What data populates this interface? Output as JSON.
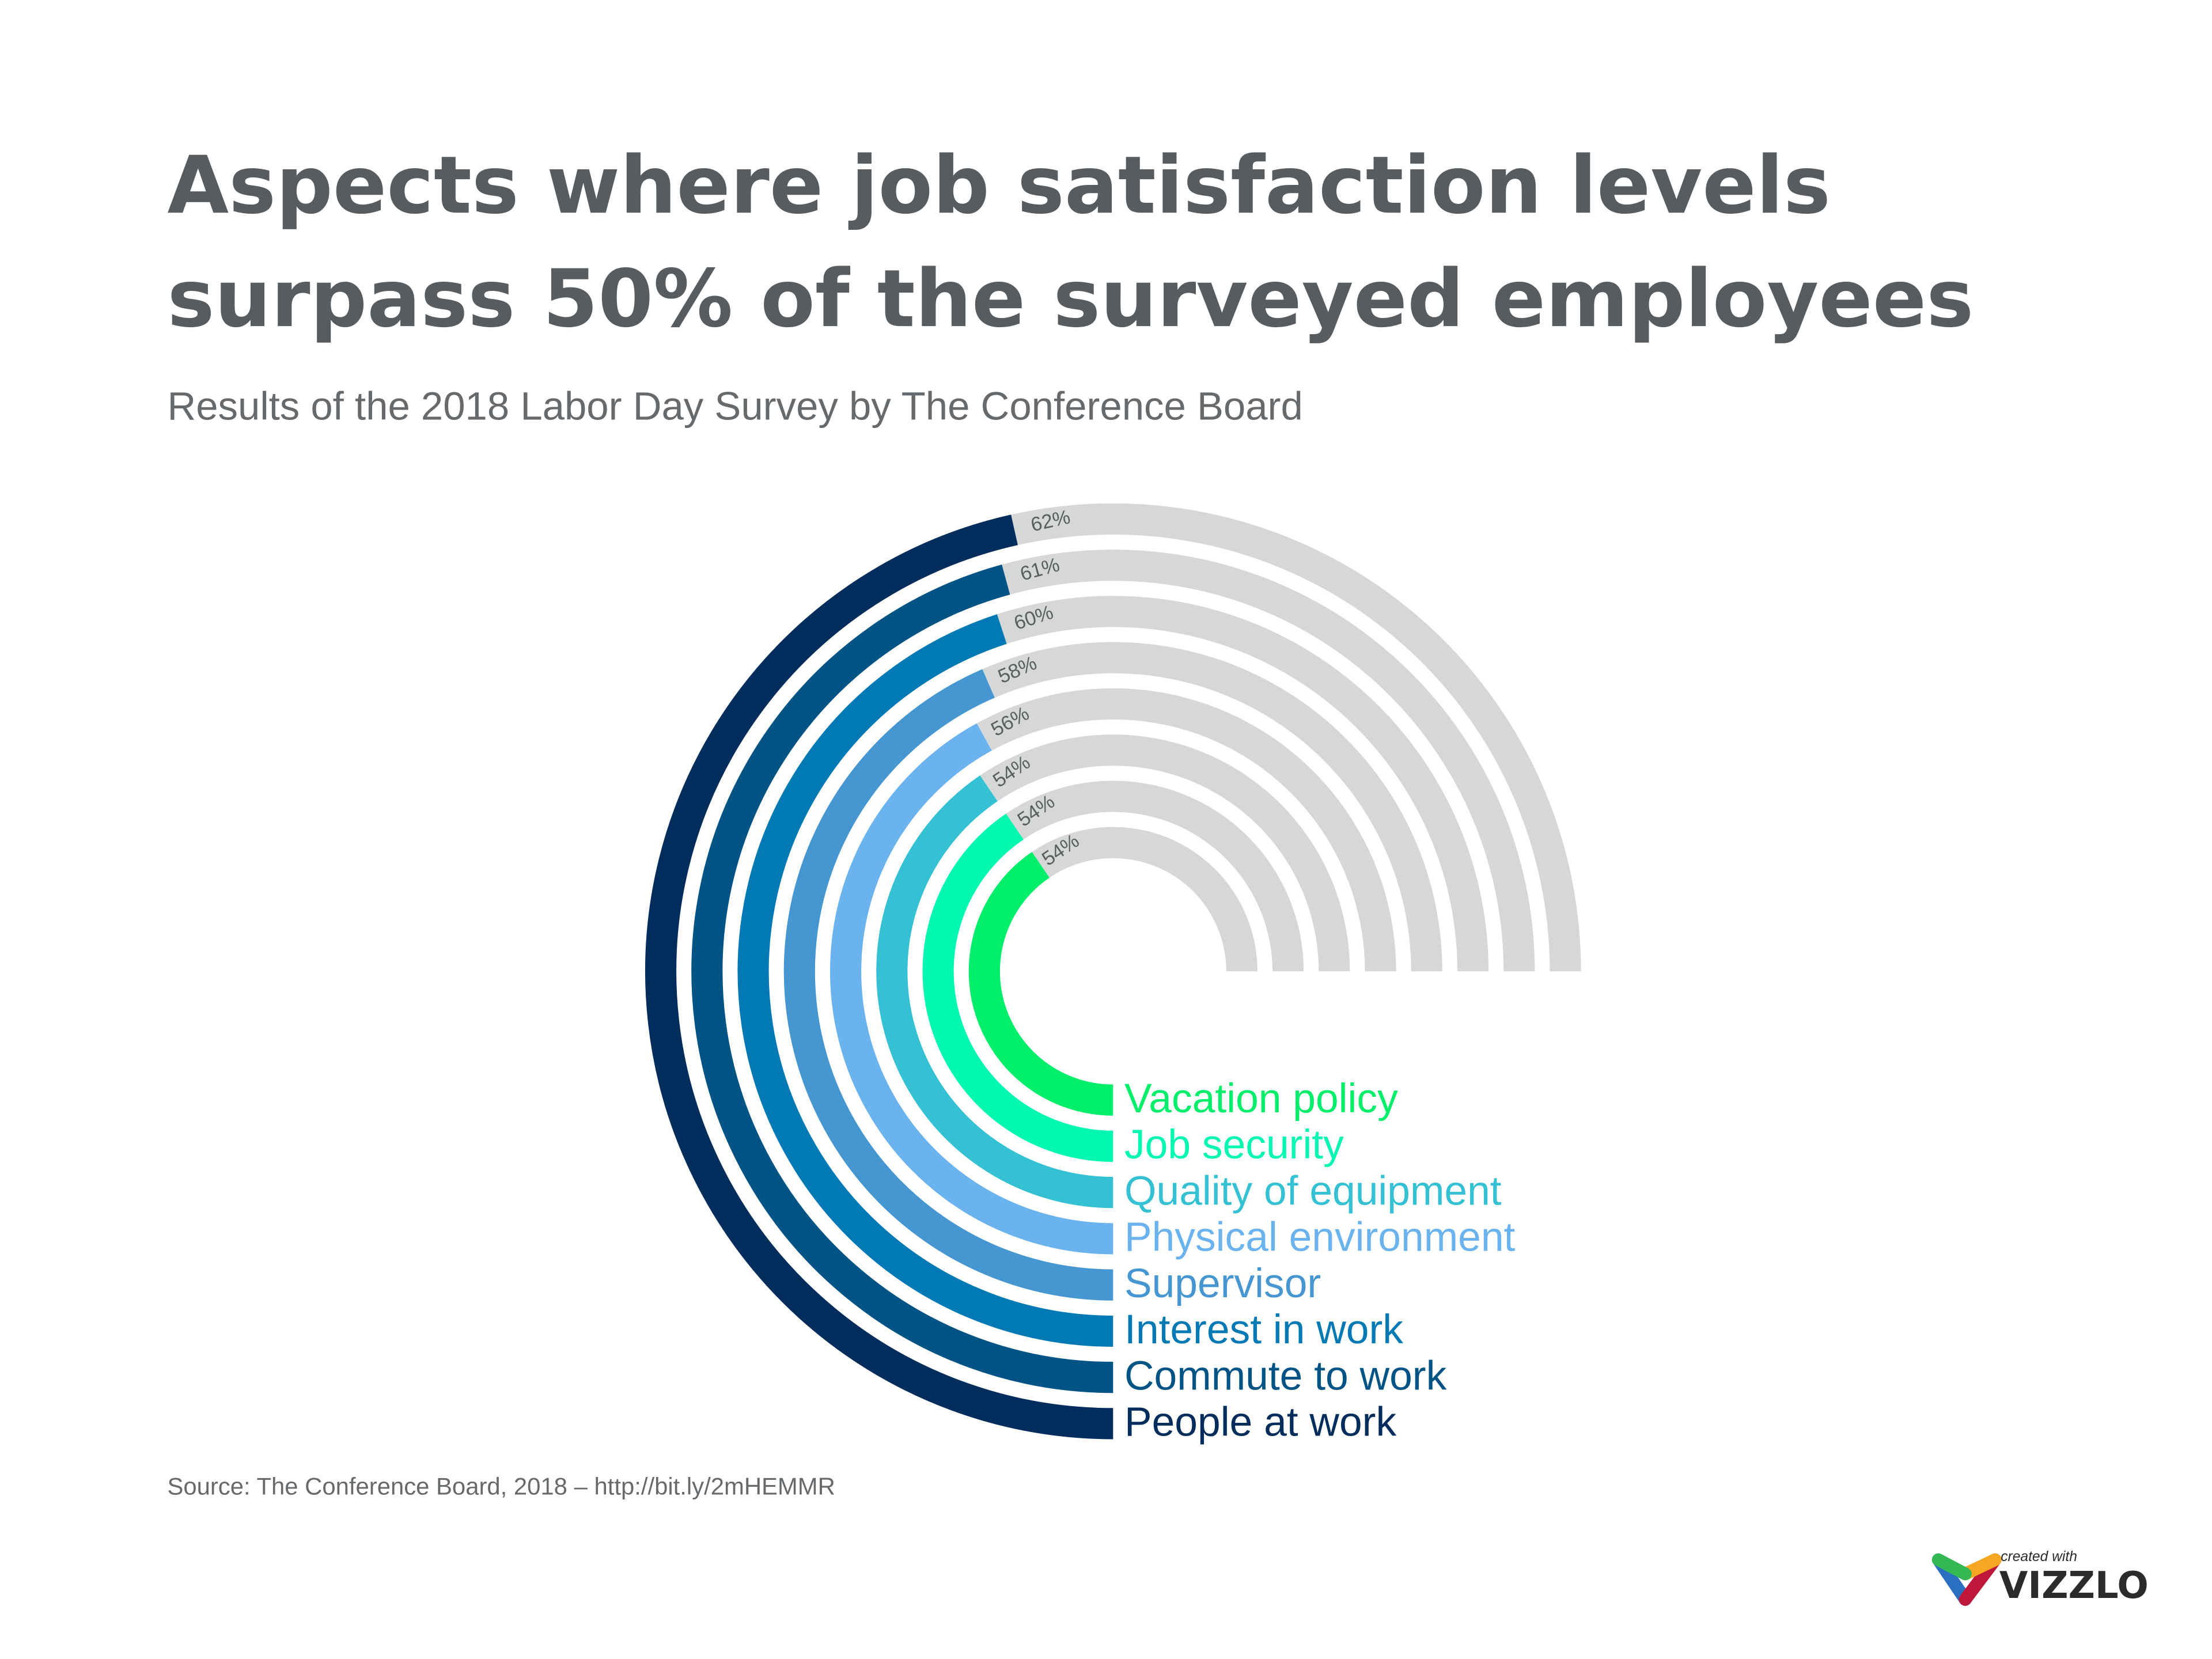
{
  "title_lines": [
    "Aspects where job satisfaction levels",
    "surpass 50% of the surveyed employees"
  ],
  "subtitle": "Results of the 2018 Labor Day Survey by The Conference Board",
  "source": "Source: The Conference Board, 2018 – http://bit.ly/2mHEMMR",
  "logo": {
    "small": "created with",
    "big": "VIZZLO"
  },
  "chart_data": {
    "type": "radial-bar",
    "max_value": 100,
    "track_color": "#d6d8d8",
    "categories": [
      "Vacation policy",
      "Job security",
      "Quality of equipment",
      "Physical environment",
      "Supervisor",
      "Interest in work",
      "Commute to work",
      "People at work"
    ],
    "values": [
      54,
      54,
      54,
      56,
      58,
      60,
      61,
      62
    ],
    "value_labels": [
      "54%",
      "54%",
      "54%",
      "56%",
      "58%",
      "60%",
      "61%",
      "62%"
    ],
    "colors": [
      "#00ef6a",
      "#00f8b0",
      "#35c1d4",
      "#6ab3ef",
      "#4696d1",
      "#0079b4",
      "#005485",
      "#002d5c"
    ]
  }
}
